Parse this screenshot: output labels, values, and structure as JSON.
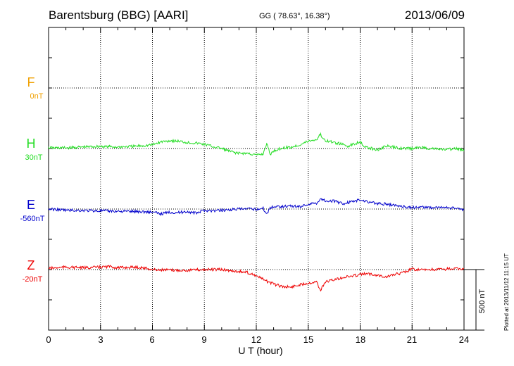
{
  "title": {
    "station": "Barentsburg (BBG)  [AARI]",
    "coords": "GG ( 78.63°,  16.38°)",
    "date": "2013/06/09"
  },
  "plotted_note": "Plotted at 2013/11/12 11:15 UT",
  "scale_label": "500 nT",
  "colors": {
    "F": "#f0a000",
    "H": "#22dd22",
    "E": "#0000cc",
    "Z": "#ee0000"
  },
  "chart_data": {
    "type": "line",
    "xlabel": "U T (hour)",
    "xlim": [
      0,
      24
    ],
    "x_ticks": [
      "0",
      "3",
      "6",
      "9",
      "12",
      "15",
      "18",
      "21",
      "24"
    ],
    "grid": true,
    "scale_nT": 500,
    "series": [
      {
        "name": "F",
        "baseline": "0nT",
        "points": []
      },
      {
        "name": "H",
        "baseline": "30nT",
        "points": [
          [
            0,
            5
          ],
          [
            1,
            5
          ],
          [
            2,
            12
          ],
          [
            3,
            18
          ],
          [
            4,
            12
          ],
          [
            5,
            18
          ],
          [
            6,
            30
          ],
          [
            6.5,
            55
          ],
          [
            7,
            65
          ],
          [
            7.5,
            60
          ],
          [
            8,
            50
          ],
          [
            8.5,
            45
          ],
          [
            9,
            35
          ],
          [
            9.5,
            15
          ],
          [
            10,
            0
          ],
          [
            10.5,
            -25
          ],
          [
            11,
            -40
          ],
          [
            11.5,
            -40
          ],
          [
            12,
            -55
          ],
          [
            12.4,
            -45
          ],
          [
            12.6,
            45
          ],
          [
            12.8,
            -50
          ],
          [
            13,
            -20
          ],
          [
            13.5,
            5
          ],
          [
            14,
            10
          ],
          [
            14.5,
            30
          ],
          [
            15,
            60
          ],
          [
            15.5,
            75
          ],
          [
            15.7,
            120
          ],
          [
            15.9,
            70
          ],
          [
            16.3,
            55
          ],
          [
            16.8,
            40
          ],
          [
            17.3,
            20
          ],
          [
            17.8,
            45
          ],
          [
            18,
            60
          ],
          [
            18.3,
            10
          ],
          [
            19,
            -10
          ],
          [
            19.5,
            20
          ],
          [
            20,
            10
          ],
          [
            20.5,
            0
          ],
          [
            21,
            0
          ],
          [
            21.5,
            10
          ],
          [
            22,
            0
          ],
          [
            22.5,
            -5
          ],
          [
            23,
            -10
          ],
          [
            23.5,
            0
          ],
          [
            24,
            -15
          ]
        ]
      },
      {
        "name": "E",
        "baseline": "-560nT",
        "points": [
          [
            0,
            0
          ],
          [
            1,
            -10
          ],
          [
            2,
            -12
          ],
          [
            3,
            -15
          ],
          [
            4,
            -18
          ],
          [
            5,
            -20
          ],
          [
            6,
            -25
          ],
          [
            6.5,
            -40
          ],
          [
            7,
            -25
          ],
          [
            7.5,
            -30
          ],
          [
            8,
            -20
          ],
          [
            8.5,
            -35
          ],
          [
            9,
            -10
          ],
          [
            9.5,
            -15
          ],
          [
            10,
            -10
          ],
          [
            10.5,
            -5
          ],
          [
            11,
            0
          ],
          [
            11.5,
            0
          ],
          [
            12,
            0
          ],
          [
            12.4,
            5
          ],
          [
            12.6,
            -40
          ],
          [
            12.8,
            10
          ],
          [
            13,
            20
          ],
          [
            14,
            25
          ],
          [
            14.5,
            20
          ],
          [
            15,
            40
          ],
          [
            15.5,
            50
          ],
          [
            15.7,
            85
          ],
          [
            16,
            70
          ],
          [
            16.5,
            65
          ],
          [
            17,
            45
          ],
          [
            17.5,
            60
          ],
          [
            18,
            75
          ],
          [
            18.5,
            60
          ],
          [
            19,
            45
          ],
          [
            19.5,
            40
          ],
          [
            20,
            30
          ],
          [
            20.5,
            20
          ],
          [
            21,
            10
          ],
          [
            21.5,
            20
          ],
          [
            22,
            10
          ],
          [
            22.5,
            15
          ],
          [
            23,
            10
          ],
          [
            23.5,
            5
          ],
          [
            24,
            -5
          ]
        ]
      },
      {
        "name": "Z",
        "baseline": "-20nT",
        "points": [
          [
            0,
            10
          ],
          [
            1,
            20
          ],
          [
            2,
            15
          ],
          [
            3,
            20
          ],
          [
            3.5,
            25
          ],
          [
            4,
            15
          ],
          [
            5,
            20
          ],
          [
            5.5,
            15
          ],
          [
            6,
            0
          ],
          [
            7,
            -5
          ],
          [
            8,
            -5
          ],
          [
            9,
            0
          ],
          [
            10,
            0
          ],
          [
            10.5,
            -10
          ],
          [
            11,
            -15
          ],
          [
            11.5,
            -25
          ],
          [
            12,
            -50
          ],
          [
            12.5,
            -90
          ],
          [
            13,
            -120
          ],
          [
            13.5,
            -140
          ],
          [
            14,
            -145
          ],
          [
            14.5,
            -125
          ],
          [
            15,
            -110
          ],
          [
            15.5,
            -100
          ],
          [
            15.7,
            -175
          ],
          [
            16,
            -100
          ],
          [
            16.5,
            -85
          ],
          [
            17,
            -65
          ],
          [
            17.5,
            -55
          ],
          [
            18,
            -40
          ],
          [
            18.5,
            -35
          ],
          [
            19,
            -45
          ],
          [
            19.5,
            -60
          ],
          [
            20,
            -40
          ],
          [
            20.5,
            -25
          ],
          [
            21,
            5
          ],
          [
            21.5,
            -5
          ],
          [
            22,
            0
          ],
          [
            22.5,
            0
          ],
          [
            23,
            5
          ],
          [
            23.5,
            5
          ],
          [
            24,
            5
          ]
        ]
      }
    ]
  }
}
